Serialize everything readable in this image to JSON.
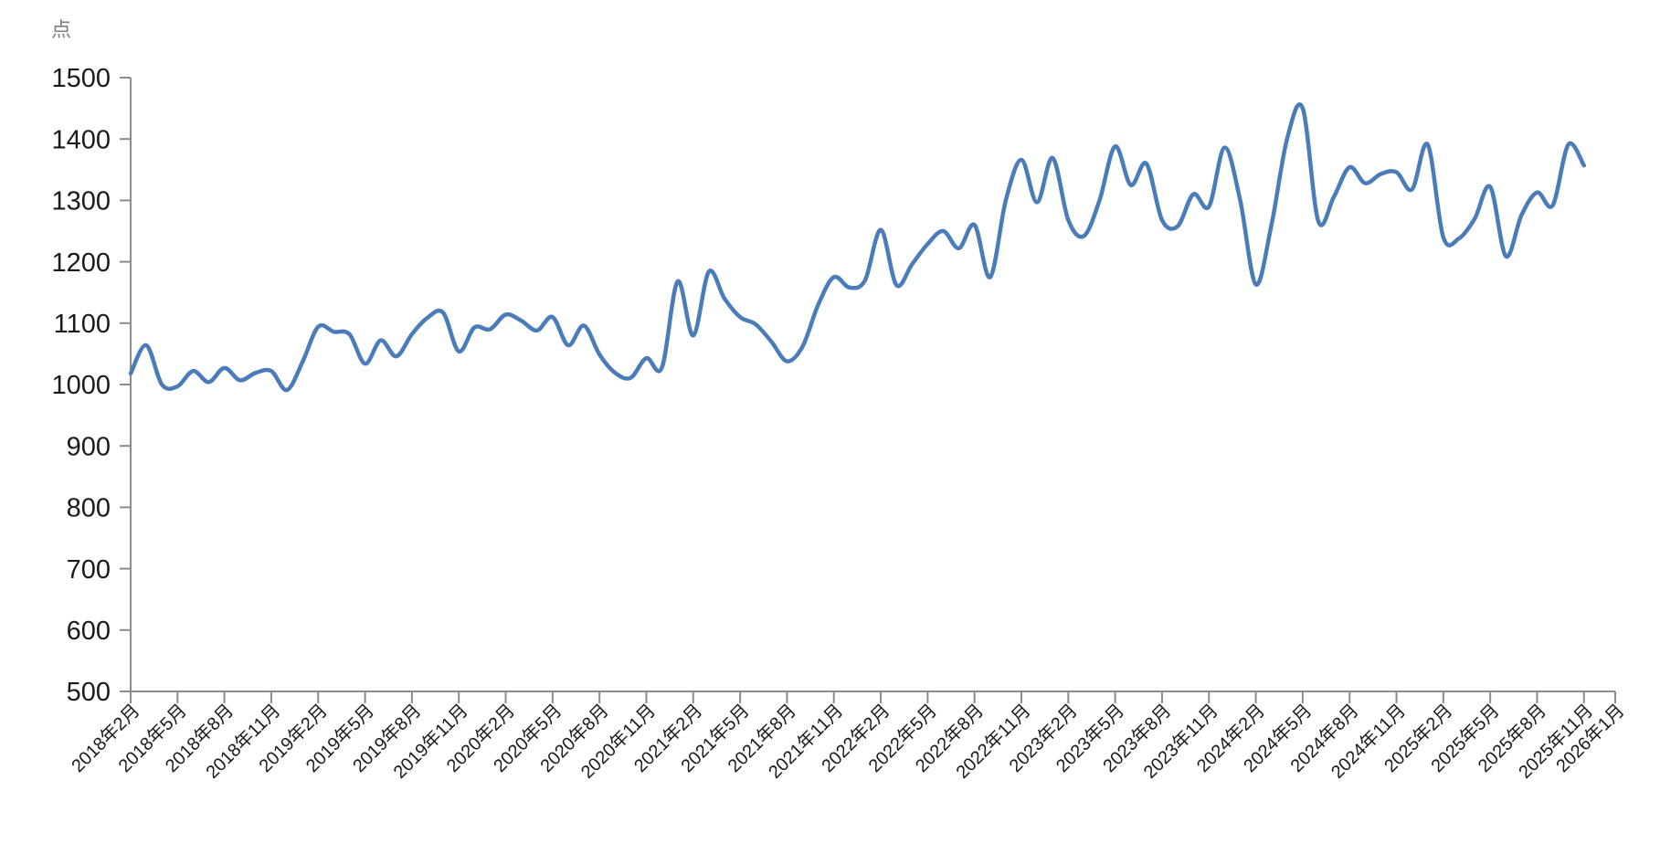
{
  "page": {
    "background": "#ffffff"
  },
  "chart_data": {
    "type": "line",
    "unit_label": "点",
    "ylabel": "点",
    "ylim": [
      500,
      1500
    ],
    "y_ticks": [
      500,
      600,
      700,
      800,
      900,
      1000,
      1100,
      1200,
      1300,
      1400,
      1500
    ],
    "grid": false,
    "legend": "none",
    "line_color": "#4A7CB9",
    "axis_color": "#8C8C8C",
    "tick_label_color": "#1A1A1A",
    "unit_label_color": "#7F7F7F",
    "x_total_slots": 96,
    "x_first_category": "2018年2月",
    "x_last_category": "2026年1月",
    "x_tick_labels": [
      "2018年2月",
      "2018年5月",
      "2018年8月",
      "2018年11月",
      "2019年2月",
      "2019年5月",
      "2019年8月",
      "2019年11月",
      "2020年2月",
      "2020年5月",
      "2020年8月",
      "2020年11月",
      "2021年2月",
      "2021年5月",
      "2021年8月",
      "2021年11月",
      "2022年2月",
      "2022年5月",
      "2022年8月",
      "2022年11月",
      "2023年2月",
      "2023年5月",
      "2023年8月",
      "2023年11月",
      "2024年2月",
      "2024年5月",
      "2024年8月",
      "2024年11月",
      "2025年2月",
      "2025年5月",
      "2025年8月",
      "2025年11月",
      "2026年1月"
    ],
    "months": [
      "2018年2月",
      "2018年3月",
      "2018年4月",
      "2018年5月",
      "2018年6月",
      "2018年7月",
      "2018年8月",
      "2018年9月",
      "2018年10月",
      "2018年11月",
      "2018年12月",
      "2019年1月",
      "2019年2月",
      "2019年3月",
      "2019年4月",
      "2019年5月",
      "2019年6月",
      "2019年7月",
      "2019年8月",
      "2019年9月",
      "2019年10月",
      "2019年11月",
      "2019年12月",
      "2020年1月",
      "2020年2月",
      "2020年3月",
      "2020年4月",
      "2020年5月",
      "2020年6月",
      "2020年7月",
      "2020年8月",
      "2020年9月",
      "2020年10月",
      "2020年11月",
      "2020年12月",
      "2021年1月",
      "2021年2月",
      "2021年3月",
      "2021年4月",
      "2021年5月",
      "2021年6月",
      "2021年7月",
      "2021年8月",
      "2021年9月",
      "2021年10月",
      "2021年11月",
      "2021年12月",
      "2022年1月",
      "2022年2月",
      "2022年3月",
      "2022年4月",
      "2022年5月",
      "2022年6月",
      "2022年7月",
      "2022年8月",
      "2022年9月",
      "2022年10月",
      "2022年11月",
      "2022年12月",
      "2023年1月",
      "2023年2月",
      "2023年3月",
      "2023年4月",
      "2023年5月",
      "2023年6月",
      "2023年7月",
      "2023年8月",
      "2023年9月",
      "2023年10月",
      "2023年11月",
      "2023年12月",
      "2024年1月",
      "2024年2月",
      "2024年3月",
      "2024年4月",
      "2024年5月",
      "2024年6月",
      "2024年7月",
      "2024年8月",
      "2024年9月",
      "2024年10月",
      "2024年11月",
      "2024年12月",
      "2025年1月",
      "2025年2月",
      "2025年3月",
      "2025年4月",
      "2025年5月",
      "2025年6月",
      "2025年7月",
      "2025年8月",
      "2025年9月",
      "2025年10月",
      "2025年11月"
    ],
    "values": [
      1018,
      1064,
      1000,
      997,
      1022,
      1004,
      1027,
      1007,
      1019,
      1022,
      991,
      1037,
      1094,
      1086,
      1082,
      1034,
      1072,
      1046,
      1082,
      1109,
      1117,
      1054,
      1093,
      1090,
      1114,
      1104,
      1088,
      1110,
      1064,
      1096,
      1049,
      1019,
      1011,
      1043,
      1028,
      1168,
      1080,
      1184,
      1140,
      1110,
      1098,
      1070,
      1038,
      1062,
      1130,
      1175,
      1158,
      1170,
      1252,
      1162,
      1196,
      1229,
      1250,
      1222,
      1260,
      1175,
      1300,
      1366,
      1297,
      1369,
      1268,
      1242,
      1300,
      1388,
      1325,
      1360,
      1268,
      1258,
      1310,
      1290,
      1386,
      1300,
      1163,
      1260,
      1400,
      1450,
      1266,
      1306,
      1354,
      1328,
      1343,
      1346,
      1318,
      1391,
      1240,
      1238,
      1270,
      1322,
      1209,
      1276,
      1313,
      1292,
      1391,
      1357
    ]
  }
}
